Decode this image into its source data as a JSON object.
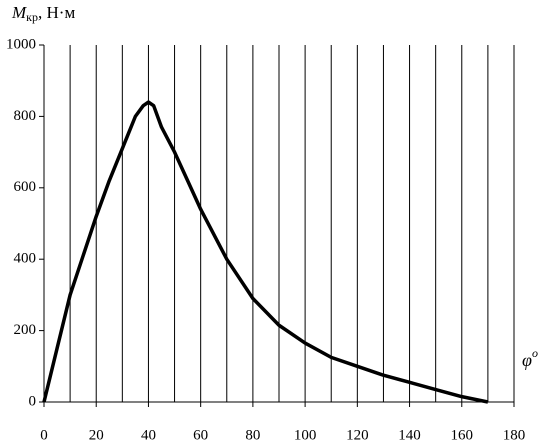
{
  "chart_data": {
    "type": "line",
    "ylabel": {
      "symbol": "M",
      "subscript": "кр",
      "unit": ", Н·м"
    },
    "xlabel": {
      "symbol": "φ",
      "superscript": "o"
    },
    "x": [
      0,
      5,
      10,
      15,
      20,
      25,
      30,
      35,
      38,
      40,
      42,
      45,
      50,
      55,
      60,
      70,
      80,
      90,
      100,
      110,
      120,
      130,
      140,
      150,
      160,
      170
    ],
    "series": [
      {
        "color": "#000000",
        "values": [
          0,
          150,
          300,
          410,
          520,
          620,
          710,
          800,
          830,
          840,
          830,
          770,
          700,
          620,
          540,
          400,
          290,
          215,
          165,
          125,
          100,
          75,
          55,
          35,
          15,
          0
        ]
      }
    ],
    "xlim": [
      0,
      180
    ],
    "xticks": [
      0,
      20,
      40,
      60,
      80,
      100,
      120,
      140,
      160,
      180
    ],
    "xgrid": [
      10,
      20,
      30,
      40,
      50,
      60,
      70,
      80,
      90,
      100,
      110,
      120,
      130,
      140,
      150,
      160,
      170,
      180
    ],
    "ylim": [
      0,
      1000
    ],
    "yticks": [
      0,
      200,
      400,
      600,
      800,
      1000
    ]
  }
}
